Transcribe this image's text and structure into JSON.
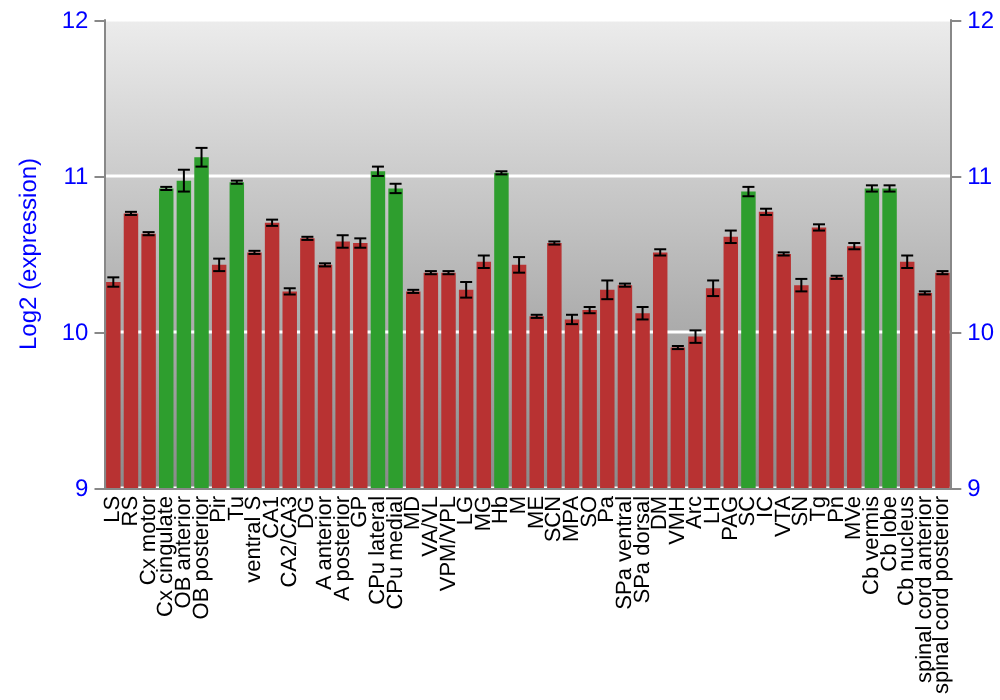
{
  "chart_data": {
    "type": "bar",
    "ylabel": "Log2 (expression)",
    "categories": [
      "LS",
      "RS",
      "Cx motor",
      "Cx cingulate",
      "OB anterior",
      "OB posterior",
      "Pir",
      "Tu",
      "ventral S",
      "CA1",
      "CA2/CA3",
      "DG",
      "A anterior",
      "A posterior",
      "GP",
      "CPu lateral",
      "CPu medial",
      "MD",
      "VA/VL",
      "VPM/VPL",
      "LG",
      "MG",
      "Hb",
      "M",
      "ME",
      "SCN",
      "MPA",
      "SO",
      "Pa",
      "SPa ventral",
      "SPa dorsal",
      "DM",
      "VMH",
      "Arc",
      "LH",
      "PAG",
      "SC",
      "IC",
      "VTA",
      "SN",
      "Tg",
      "Pn",
      "MVe",
      "Cb vermis",
      "Cb lobe",
      "Cb nucleus",
      "spinal cord anterior",
      "spinal cord posterior"
    ],
    "values": [
      10.32,
      10.76,
      10.63,
      10.92,
      10.97,
      11.12,
      10.43,
      10.96,
      10.51,
      10.7,
      10.26,
      10.6,
      10.43,
      10.58,
      10.57,
      11.03,
      10.92,
      10.26,
      10.38,
      10.38,
      10.27,
      10.45,
      11.02,
      10.43,
      10.1,
      10.57,
      10.08,
      10.14,
      10.27,
      10.3,
      10.12,
      10.51,
      9.9,
      9.97,
      10.28,
      10.61,
      10.9,
      10.77,
      10.5,
      10.3,
      10.67,
      10.35,
      10.55,
      10.92,
      10.92,
      10.45,
      10.25,
      10.38
    ],
    "errors": [
      0.03,
      0.01,
      0.01,
      0.01,
      0.07,
      0.06,
      0.04,
      0.01,
      0.01,
      0.02,
      0.02,
      0.01,
      0.01,
      0.04,
      0.03,
      0.03,
      0.03,
      0.01,
      0.01,
      0.01,
      0.05,
      0.04,
      0.01,
      0.05,
      0.01,
      0.01,
      0.03,
      0.02,
      0.06,
      0.01,
      0.04,
      0.02,
      0.01,
      0.04,
      0.05,
      0.04,
      0.03,
      0.02,
      0.01,
      0.04,
      0.02,
      0.01,
      0.02,
      0.02,
      0.02,
      0.04,
      0.01,
      0.01
    ],
    "colors": [
      "#b83232",
      "#b83232",
      "#b83232",
      "#2e9e2e",
      "#2e9e2e",
      "#2e9e2e",
      "#b83232",
      "#2e9e2e",
      "#b83232",
      "#b83232",
      "#b83232",
      "#b83232",
      "#b83232",
      "#b83232",
      "#b83232",
      "#2e9e2e",
      "#2e9e2e",
      "#b83232",
      "#b83232",
      "#b83232",
      "#b83232",
      "#b83232",
      "#2e9e2e",
      "#b83232",
      "#b83232",
      "#b83232",
      "#b83232",
      "#b83232",
      "#b83232",
      "#b83232",
      "#b83232",
      "#b83232",
      "#b83232",
      "#b83232",
      "#b83232",
      "#b83232",
      "#2e9e2e",
      "#b83232",
      "#b83232",
      "#b83232",
      "#b83232",
      "#b83232",
      "#b83232",
      "#2e9e2e",
      "#2e9e2e",
      "#b83232",
      "#b83232",
      "#b83232"
    ],
    "ylim": [
      9,
      12
    ],
    "yticks": [
      9,
      10,
      11,
      12
    ],
    "y2lim": [
      9,
      12
    ],
    "y2ticks": [
      9,
      10,
      11,
      12
    ],
    "grid": "y"
  }
}
